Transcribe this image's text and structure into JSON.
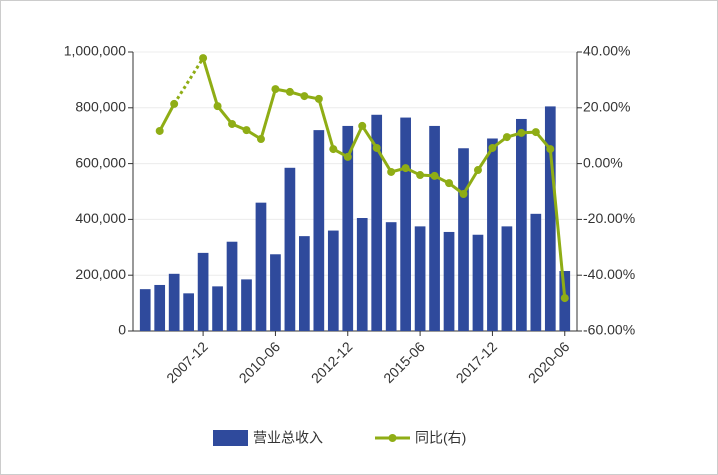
{
  "chart_data": {
    "type": "bar-line",
    "categories": [
      null,
      null,
      null,
      null,
      "2007-12",
      null,
      null,
      null,
      null,
      "2010-06",
      null,
      null,
      null,
      null,
      "2012-12",
      null,
      null,
      null,
      null,
      "2015-06",
      null,
      null,
      null,
      null,
      "2017-12",
      null,
      null,
      null,
      null,
      "2020-06"
    ],
    "series": [
      {
        "name": "营业总收入",
        "type": "bar",
        "color": "#2f4a9c",
        "values": [
          150000,
          165000,
          205000,
          135000,
          280000,
          160000,
          320000,
          185000,
          460000,
          275000,
          585000,
          340000,
          720000,
          360000,
          735000,
          405000,
          775000,
          390000,
          765000,
          375000,
          735000,
          355000,
          655000,
          345000,
          690000,
          375000,
          760000,
          420000,
          805000,
          215000
        ]
      },
      {
        "name": "同比(右)",
        "type": "line",
        "axis": "y2",
        "color": "#8fad15",
        "values": [
          null,
          11.7,
          21.4,
          null,
          37.8,
          20.6,
          14.2,
          12,
          8.8,
          26.7,
          25.7,
          24.2,
          23.2,
          5.2,
          2.4,
          13.5,
          5.6,
          -3,
          -1.6,
          -4.1,
          -4.4,
          -7,
          -10.9,
          -2.3,
          5.6,
          9.5,
          11,
          11.3,
          5.2,
          -48.2
        ]
      }
    ],
    "ylim": [
      0,
      1000000
    ],
    "yticks": [
      0,
      {
        "value": 200000,
        "label": "200,000"
      },
      {
        "value": 400000,
        "label": "400,000"
      },
      {
        "value": 600000,
        "label": "600,000"
      },
      {
        "value": 800000,
        "label": "800,000"
      },
      {
        "value": 1000000,
        "label": "1,000,000"
      }
    ],
    "y2lim": [
      -60,
      40
    ],
    "y2ticks": [
      {
        "value": -60,
        "label": "-60.00%"
      },
      {
        "value": -40,
        "label": "-40.00%"
      },
      {
        "value": -20,
        "label": "-20.00%"
      },
      {
        "value": 0,
        "label": "0.00%"
      },
      {
        "value": 20,
        "label": "20.00%"
      },
      {
        "value": 40,
        "label": "40.00%"
      }
    ],
    "grid": true
  }
}
